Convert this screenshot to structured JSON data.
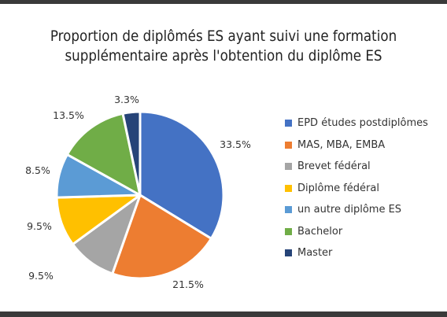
{
  "chart_data": {
    "type": "pie",
    "title": [
      "Proportion de diplômés ES ayant suivi une formation",
      "supplémentaire après l'obtention du diplôme ES"
    ],
    "legend_position": "right",
    "slices": [
      {
        "label": "EPD études postdiplômes",
        "value": 33.5,
        "value_label": "33.5%",
        "color": "#4472c4"
      },
      {
        "label": "MAS, MBA, EMBA",
        "value": 21.5,
        "value_label": "21.5%",
        "color": "#ed7d31"
      },
      {
        "label": "Brevet fédéral",
        "value": 9.5,
        "value_label": "9.5%",
        "color": "#a5a5a5"
      },
      {
        "label": "Diplôme fédéral",
        "value": 9.5,
        "value_label": "9.5%",
        "color": "#ffc000"
      },
      {
        "label": "un autre diplôme ES",
        "value": 8.5,
        "value_label": "8.5%",
        "color": "#5b9bd5"
      },
      {
        "label": "Bachelor",
        "value": 13.5,
        "value_label": "13.5%",
        "color": "#70ad47"
      },
      {
        "label": "Master",
        "value": 3.3,
        "value_label": "3.3%",
        "color": "#264478"
      }
    ]
  }
}
